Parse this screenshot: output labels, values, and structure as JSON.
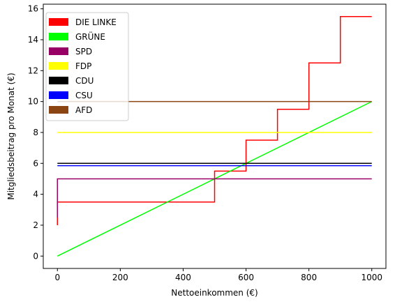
{
  "chart_data": {
    "type": "line",
    "title": "",
    "xlabel": "Nettoeinkommen (€)",
    "ylabel": "Mitgliedsbeitrag pro Monat (€)",
    "xlim": [
      -45,
      1045
    ],
    "ylim": [
      -0.8,
      16.3
    ],
    "xticks": [
      0,
      200,
      400,
      600,
      800,
      1000
    ],
    "yticks": [
      0,
      2,
      4,
      6,
      8,
      10,
      12,
      14,
      16
    ],
    "xtick_labels": [
      "0",
      "200",
      "400",
      "600",
      "800",
      "1000"
    ],
    "ytick_labels": [
      "0",
      "2",
      "4",
      "6",
      "8",
      "10",
      "12",
      "14",
      "16"
    ],
    "grid": false,
    "legend_position": "upper-left",
    "series": [
      {
        "name": "DIE LINKE",
        "color": "#ff0000",
        "step": true,
        "points": [
          [
            0,
            2.0
          ],
          [
            0,
            3.5
          ],
          [
            500,
            3.5
          ],
          [
            500,
            5.5
          ],
          [
            600,
            5.5
          ],
          [
            600,
            7.5
          ],
          [
            700,
            7.5
          ],
          [
            700,
            9.5
          ],
          [
            800,
            9.5
          ],
          [
            800,
            12.5
          ],
          [
            900,
            12.5
          ],
          [
            900,
            15.5
          ],
          [
            1000,
            15.5
          ]
        ]
      },
      {
        "name": "GRÜNE",
        "color": "#00ff00",
        "points": [
          [
            0,
            0
          ],
          [
            1000,
            10
          ]
        ]
      },
      {
        "name": "SPD",
        "color": "#990066",
        "points": [
          [
            0,
            2.5
          ],
          [
            0,
            5.0
          ],
          [
            1000,
            5.0
          ]
        ]
      },
      {
        "name": "FDP",
        "color": "#ffff00",
        "points": [
          [
            0,
            8.0
          ],
          [
            1000,
            8.0
          ]
        ]
      },
      {
        "name": "CDU",
        "color": "#000000",
        "points": [
          [
            0,
            6.0
          ],
          [
            1000,
            6.0
          ]
        ]
      },
      {
        "name": "CSU",
        "color": "#0000ff",
        "points": [
          [
            0,
            5.85
          ],
          [
            1000,
            5.85
          ]
        ]
      },
      {
        "name": "AFD",
        "color": "#8b4513",
        "points": [
          [
            0,
            10.0
          ],
          [
            1000,
            10.0
          ]
        ]
      }
    ]
  }
}
